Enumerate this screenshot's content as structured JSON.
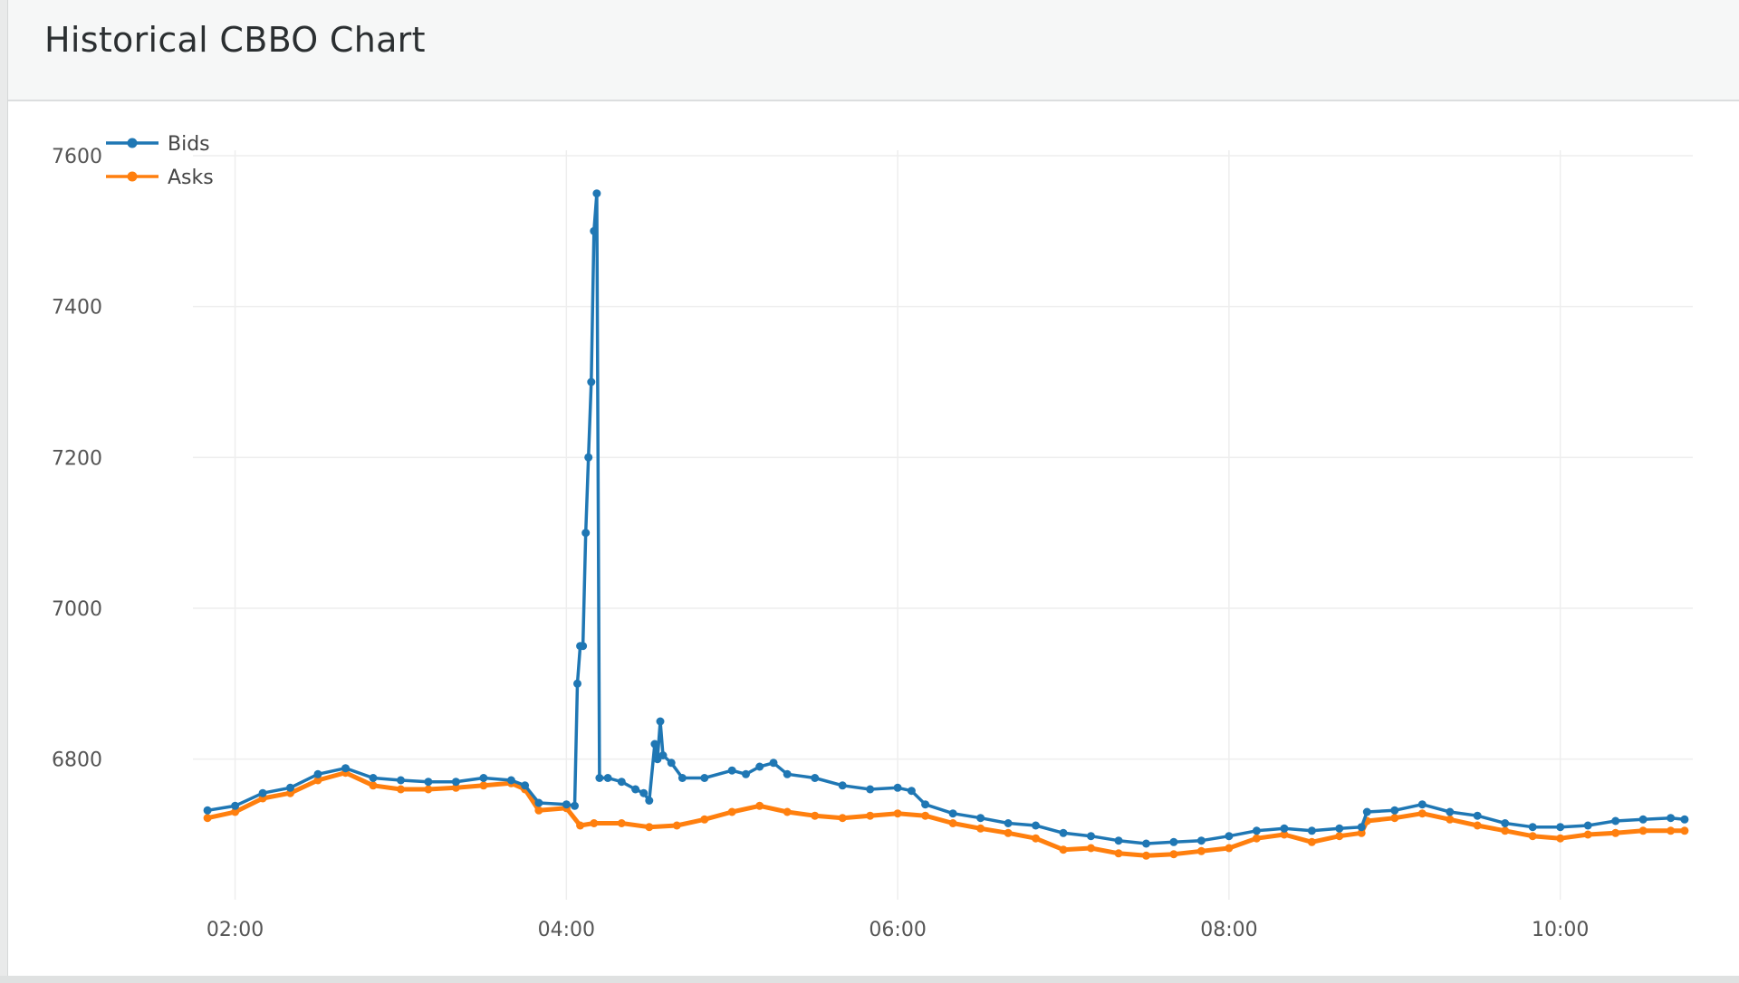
{
  "panel": {
    "title": "Historical CBBO Chart"
  },
  "chart_data": {
    "type": "line",
    "title": "",
    "xlabel": "",
    "ylabel": "",
    "x_unit": "time (HH:MM)",
    "xlim": [
      "01:48",
      "10:48"
    ],
    "ylim": [
      6640,
      7600
    ],
    "x_ticks": [
      "02:00",
      "04:00",
      "06:00",
      "08:00",
      "10:00"
    ],
    "y_ticks": [
      6800,
      7000,
      7200,
      7400,
      7600
    ],
    "grid": true,
    "legend": "top-left",
    "series": [
      {
        "name": "Bids",
        "color": "#1f77b4",
        "marker": "circle",
        "points": [
          [
            "01:50",
            6732
          ],
          [
            "02:00",
            6738
          ],
          [
            "02:10",
            6755
          ],
          [
            "02:20",
            6762
          ],
          [
            "02:30",
            6780
          ],
          [
            "02:40",
            6788
          ],
          [
            "02:50",
            6775
          ],
          [
            "03:00",
            6772
          ],
          [
            "03:10",
            6770
          ],
          [
            "03:20",
            6770
          ],
          [
            "03:30",
            6775
          ],
          [
            "03:40",
            6772
          ],
          [
            "03:45",
            6765
          ],
          [
            "03:50",
            6742
          ],
          [
            "04:00",
            6740
          ],
          [
            "04:03",
            6738
          ],
          [
            "04:04",
            6900
          ],
          [
            "04:05",
            6950
          ],
          [
            "04:06",
            6950
          ],
          [
            "04:07",
            7100
          ],
          [
            "04:08",
            7200
          ],
          [
            "04:09",
            7300
          ],
          [
            "04:10",
            7500
          ],
          [
            "04:11",
            7550
          ],
          [
            "04:12",
            6775
          ],
          [
            "04:15",
            6775
          ],
          [
            "04:20",
            6770
          ],
          [
            "04:25",
            6760
          ],
          [
            "04:28",
            6755
          ],
          [
            "04:30",
            6745
          ],
          [
            "04:32",
            6820
          ],
          [
            "04:33",
            6800
          ],
          [
            "04:34",
            6850
          ],
          [
            "04:35",
            6805
          ],
          [
            "04:38",
            6795
          ],
          [
            "04:42",
            6775
          ],
          [
            "04:50",
            6775
          ],
          [
            "05:00",
            6785
          ],
          [
            "05:05",
            6780
          ],
          [
            "05:10",
            6790
          ],
          [
            "05:15",
            6795
          ],
          [
            "05:20",
            6780
          ],
          [
            "05:30",
            6775
          ],
          [
            "05:40",
            6765
          ],
          [
            "05:50",
            6760
          ],
          [
            "06:00",
            6762
          ],
          [
            "06:05",
            6758
          ],
          [
            "06:10",
            6740
          ],
          [
            "06:20",
            6728
          ],
          [
            "06:30",
            6722
          ],
          [
            "06:40",
            6715
          ],
          [
            "06:50",
            6712
          ],
          [
            "07:00",
            6702
          ],
          [
            "07:10",
            6698
          ],
          [
            "07:20",
            6692
          ],
          [
            "07:30",
            6688
          ],
          [
            "07:40",
            6690
          ],
          [
            "07:50",
            6692
          ],
          [
            "08:00",
            6698
          ],
          [
            "08:10",
            6705
          ],
          [
            "08:20",
            6708
          ],
          [
            "08:30",
            6705
          ],
          [
            "08:40",
            6708
          ],
          [
            "08:48",
            6710
          ],
          [
            "08:50",
            6730
          ],
          [
            "09:00",
            6732
          ],
          [
            "09:10",
            6740
          ],
          [
            "09:20",
            6730
          ],
          [
            "09:30",
            6725
          ],
          [
            "09:40",
            6715
          ],
          [
            "09:50",
            6710
          ],
          [
            "10:00",
            6710
          ],
          [
            "10:10",
            6712
          ],
          [
            "10:20",
            6718
          ],
          [
            "10:30",
            6720
          ],
          [
            "10:40",
            6722
          ],
          [
            "10:45",
            6720
          ]
        ]
      },
      {
        "name": "Asks",
        "color": "#ff7f0e",
        "marker": "circle",
        "points": [
          [
            "01:50",
            6722
          ],
          [
            "02:00",
            6730
          ],
          [
            "02:10",
            6748
          ],
          [
            "02:20",
            6755
          ],
          [
            "02:30",
            6772
          ],
          [
            "02:40",
            6782
          ],
          [
            "02:50",
            6765
          ],
          [
            "03:00",
            6760
          ],
          [
            "03:10",
            6760
          ],
          [
            "03:20",
            6762
          ],
          [
            "03:30",
            6765
          ],
          [
            "03:40",
            6768
          ],
          [
            "03:45",
            6760
          ],
          [
            "03:50",
            6732
          ],
          [
            "04:00",
            6735
          ],
          [
            "04:05",
            6712
          ],
          [
            "04:10",
            6715
          ],
          [
            "04:20",
            6715
          ],
          [
            "04:30",
            6710
          ],
          [
            "04:40",
            6712
          ],
          [
            "04:50",
            6720
          ],
          [
            "05:00",
            6730
          ],
          [
            "05:10",
            6738
          ],
          [
            "05:20",
            6730
          ],
          [
            "05:30",
            6725
          ],
          [
            "05:40",
            6722
          ],
          [
            "05:50",
            6725
          ],
          [
            "06:00",
            6728
          ],
          [
            "06:10",
            6725
          ],
          [
            "06:20",
            6715
          ],
          [
            "06:30",
            6708
          ],
          [
            "06:40",
            6702
          ],
          [
            "06:50",
            6695
          ],
          [
            "07:00",
            6680
          ],
          [
            "07:10",
            6682
          ],
          [
            "07:20",
            6675
          ],
          [
            "07:30",
            6672
          ],
          [
            "07:40",
            6674
          ],
          [
            "07:50",
            6678
          ],
          [
            "08:00",
            6682
          ],
          [
            "08:10",
            6695
          ],
          [
            "08:20",
            6700
          ],
          [
            "08:30",
            6690
          ],
          [
            "08:40",
            6698
          ],
          [
            "08:48",
            6702
          ],
          [
            "08:50",
            6718
          ],
          [
            "09:00",
            6722
          ],
          [
            "09:10",
            6728
          ],
          [
            "09:20",
            6720
          ],
          [
            "09:30",
            6712
          ],
          [
            "09:40",
            6705
          ],
          [
            "09:50",
            6698
          ],
          [
            "10:00",
            6695
          ],
          [
            "10:10",
            6700
          ],
          [
            "10:20",
            6702
          ],
          [
            "10:30",
            6705
          ],
          [
            "10:40",
            6705
          ],
          [
            "10:45",
            6705
          ]
        ]
      }
    ]
  }
}
